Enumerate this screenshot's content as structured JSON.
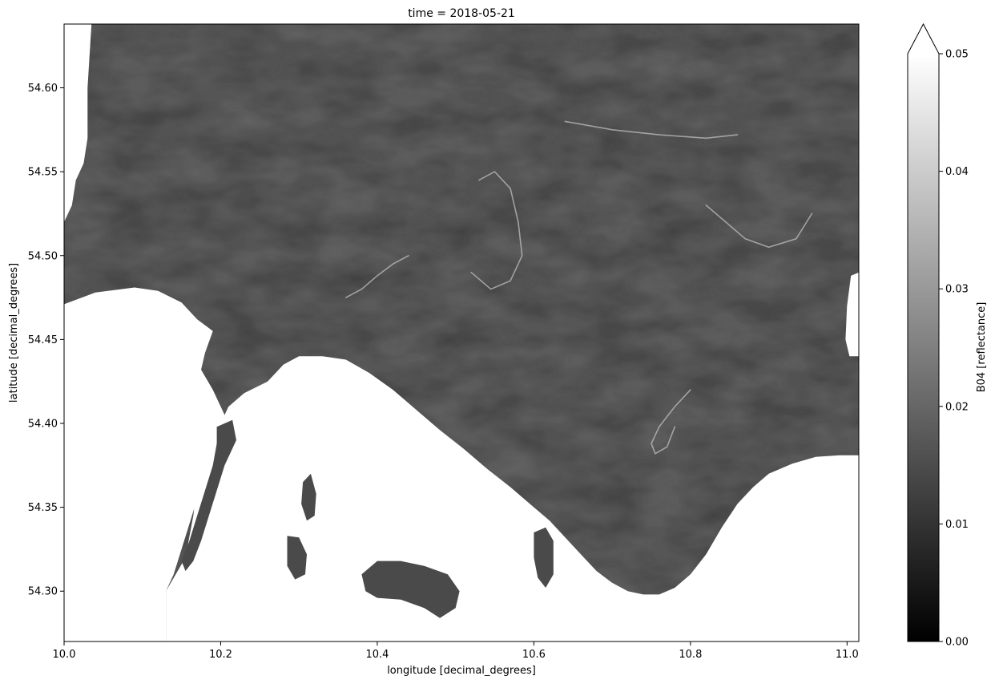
{
  "title": "time = 2018-05-21",
  "map": {
    "xlabel": "longitude [decimal_degrees]",
    "ylabel": "latitude [decimal_degrees]",
    "xlim": [
      10.0,
      11.015
    ],
    "ylim": [
      54.27,
      54.638
    ],
    "xticks": [
      {
        "value": 10.0,
        "label": "10.0"
      },
      {
        "value": 10.2,
        "label": "10.2"
      },
      {
        "value": 10.4,
        "label": "10.4"
      },
      {
        "value": 10.6,
        "label": "10.6"
      },
      {
        "value": 10.8,
        "label": "10.8"
      },
      {
        "value": 11.0,
        "label": "11.0"
      }
    ],
    "yticks": [
      {
        "value": 54.3,
        "label": "54.30"
      },
      {
        "value": 54.35,
        "label": "54.35"
      },
      {
        "value": 54.4,
        "label": "54.40"
      },
      {
        "value": 54.45,
        "label": "54.45"
      },
      {
        "value": 54.5,
        "label": "54.50"
      },
      {
        "value": 54.55,
        "label": "54.55"
      },
      {
        "value": 54.6,
        "label": "54.60"
      }
    ],
    "water_color": "#3c3c3c",
    "land_color": "#ffffff",
    "land_areas": [
      {
        "name": "west-mainland",
        "lonlat": [
          [
            10.0,
            54.471
          ],
          [
            10.04,
            54.478
          ],
          [
            10.09,
            54.481
          ],
          [
            10.12,
            54.479
          ],
          [
            10.15,
            54.472
          ],
          [
            10.17,
            54.462
          ],
          [
            10.19,
            54.455
          ],
          [
            10.18,
            54.442
          ],
          [
            10.175,
            54.432
          ],
          [
            10.19,
            54.42
          ],
          [
            10.2,
            54.41
          ],
          [
            10.21,
            54.4
          ],
          [
            10.2,
            54.39
          ],
          [
            10.19,
            54.38
          ],
          [
            10.18,
            54.37
          ],
          [
            10.17,
            54.355
          ],
          [
            10.16,
            54.34
          ],
          [
            10.15,
            54.325
          ],
          [
            10.14,
            54.31
          ],
          [
            10.13,
            54.3
          ],
          [
            10.13,
            54.27
          ],
          [
            10.0,
            54.27
          ]
        ]
      },
      {
        "name": "mainland-south",
        "lonlat": [
          [
            10.13,
            54.27
          ],
          [
            10.13,
            54.3
          ],
          [
            10.155,
            54.32
          ],
          [
            10.165,
            54.345
          ],
          [
            10.17,
            54.365
          ],
          [
            10.18,
            54.38
          ],
          [
            10.19,
            54.39
          ],
          [
            10.2,
            54.4
          ],
          [
            10.21,
            54.41
          ],
          [
            10.23,
            54.418
          ],
          [
            10.26,
            54.425
          ],
          [
            10.28,
            54.435
          ],
          [
            10.3,
            54.44
          ],
          [
            10.33,
            54.44
          ],
          [
            10.36,
            54.438
          ],
          [
            10.39,
            54.43
          ],
          [
            10.42,
            54.42
          ],
          [
            10.45,
            54.408
          ],
          [
            10.48,
            54.396
          ],
          [
            10.51,
            54.385
          ],
          [
            10.54,
            54.373
          ],
          [
            10.57,
            54.362
          ],
          [
            10.6,
            54.35
          ],
          [
            10.62,
            54.342
          ],
          [
            10.64,
            54.332
          ],
          [
            10.66,
            54.322
          ],
          [
            10.68,
            54.312
          ],
          [
            10.7,
            54.305
          ],
          [
            10.72,
            54.3
          ],
          [
            10.74,
            54.298
          ],
          [
            10.76,
            54.298
          ],
          [
            10.78,
            54.302
          ],
          [
            10.8,
            54.31
          ],
          [
            10.82,
            54.322
          ],
          [
            10.84,
            54.338
          ],
          [
            10.86,
            54.352
          ],
          [
            10.88,
            54.362
          ],
          [
            10.9,
            54.37
          ],
          [
            10.93,
            54.376
          ],
          [
            10.96,
            54.38
          ],
          [
            10.99,
            54.381
          ],
          [
            11.015,
            54.381
          ],
          [
            11.015,
            54.27
          ]
        ]
      },
      {
        "name": "north-west-coast",
        "lonlat": [
          [
            10.0,
            54.638
          ],
          [
            10.035,
            54.638
          ],
          [
            10.03,
            54.6
          ],
          [
            10.03,
            54.57
          ],
          [
            10.025,
            54.555
          ],
          [
            10.015,
            54.545
          ],
          [
            10.01,
            54.53
          ],
          [
            10.0,
            54.52
          ]
        ]
      },
      {
        "name": "east-coast",
        "lonlat": [
          [
            11.015,
            54.49
          ],
          [
            11.005,
            54.488
          ],
          [
            11.0,
            54.47
          ],
          [
            10.998,
            54.45
          ],
          [
            11.003,
            54.44
          ],
          [
            11.015,
            54.44
          ]
        ]
      }
    ],
    "water_areas": [
      {
        "name": "fjord",
        "lonlat": [
          [
            10.195,
            54.398
          ],
          [
            10.215,
            54.402
          ],
          [
            10.22,
            54.39
          ],
          [
            10.205,
            54.375
          ],
          [
            10.195,
            54.36
          ],
          [
            10.185,
            54.345
          ],
          [
            10.175,
            54.33
          ],
          [
            10.165,
            54.318
          ],
          [
            10.155,
            54.312
          ],
          [
            10.15,
            54.318
          ],
          [
            10.16,
            54.33
          ],
          [
            10.17,
            54.345
          ],
          [
            10.18,
            54.36
          ],
          [
            10.19,
            54.375
          ],
          [
            10.195,
            54.388
          ]
        ]
      },
      {
        "name": "lake-large",
        "lonlat": [
          [
            10.38,
            54.31
          ],
          [
            10.4,
            54.318
          ],
          [
            10.43,
            54.318
          ],
          [
            10.46,
            54.315
          ],
          [
            10.49,
            54.31
          ],
          [
            10.505,
            54.3
          ],
          [
            10.5,
            54.29
          ],
          [
            10.48,
            54.284
          ],
          [
            10.46,
            54.29
          ],
          [
            10.43,
            54.295
          ],
          [
            10.4,
            54.296
          ],
          [
            10.385,
            54.3
          ]
        ]
      },
      {
        "name": "lake-medium",
        "lonlat": [
          [
            10.6,
            54.335
          ],
          [
            10.615,
            54.338
          ],
          [
            10.625,
            54.33
          ],
          [
            10.625,
            54.31
          ],
          [
            10.615,
            54.302
          ],
          [
            10.605,
            54.308
          ],
          [
            10.6,
            54.32
          ]
        ]
      },
      {
        "name": "lake-small-1",
        "lonlat": [
          [
            10.285,
            54.333
          ],
          [
            10.3,
            54.332
          ],
          [
            10.31,
            54.322
          ],
          [
            10.308,
            54.31
          ],
          [
            10.295,
            54.307
          ],
          [
            10.285,
            54.315
          ]
        ]
      },
      {
        "name": "lake-small-2",
        "lonlat": [
          [
            10.305,
            54.365
          ],
          [
            10.315,
            54.37
          ],
          [
            10.322,
            54.358
          ],
          [
            10.32,
            54.345
          ],
          [
            10.31,
            54.342
          ],
          [
            10.303,
            54.352
          ]
        ]
      }
    ],
    "features": [
      {
        "name": "eddy-centre",
        "lonlat": [
          [
            10.8,
            54.42
          ],
          [
            10.78,
            54.41
          ],
          [
            10.76,
            54.398
          ],
          [
            10.75,
            54.388
          ],
          [
            10.755,
            54.382
          ],
          [
            10.77,
            54.386
          ],
          [
            10.78,
            54.398
          ]
        ]
      },
      {
        "name": "eddy-north",
        "lonlat": [
          [
            10.53,
            54.545
          ],
          [
            10.55,
            54.55
          ],
          [
            10.57,
            54.54
          ],
          [
            10.58,
            54.52
          ],
          [
            10.585,
            54.5
          ],
          [
            10.57,
            54.485
          ],
          [
            10.545,
            54.48
          ],
          [
            10.52,
            54.49
          ]
        ]
      },
      {
        "name": "front-east",
        "lonlat": [
          [
            10.82,
            54.53
          ],
          [
            10.845,
            54.52
          ],
          [
            10.87,
            54.51
          ],
          [
            10.9,
            54.505
          ],
          [
            10.935,
            54.51
          ],
          [
            10.955,
            54.525
          ]
        ]
      },
      {
        "name": "front-west",
        "lonlat": [
          [
            10.36,
            54.475
          ],
          [
            10.38,
            54.48
          ],
          [
            10.4,
            54.488
          ],
          [
            10.42,
            54.495
          ],
          [
            10.44,
            54.5
          ]
        ]
      },
      {
        "name": "streak-top",
        "lonlat": [
          [
            10.64,
            54.58
          ],
          [
            10.7,
            54.575
          ],
          [
            10.76,
            54.572
          ],
          [
            10.82,
            54.57
          ],
          [
            10.86,
            54.572
          ]
        ]
      }
    ]
  },
  "colorbar": {
    "label": "B04 [reflectance]",
    "min": 0.0,
    "max": 0.05,
    "extend": "max",
    "ticks": [
      {
        "value": 0.0,
        "label": "0.00"
      },
      {
        "value": 0.01,
        "label": "0.01"
      },
      {
        "value": 0.02,
        "label": "0.02"
      },
      {
        "value": 0.03,
        "label": "0.03"
      },
      {
        "value": 0.04,
        "label": "0.04"
      },
      {
        "value": 0.05,
        "label": "0.05"
      }
    ],
    "colormap": "gray",
    "color_low": "#000000",
    "color_high": "#ffffff"
  }
}
